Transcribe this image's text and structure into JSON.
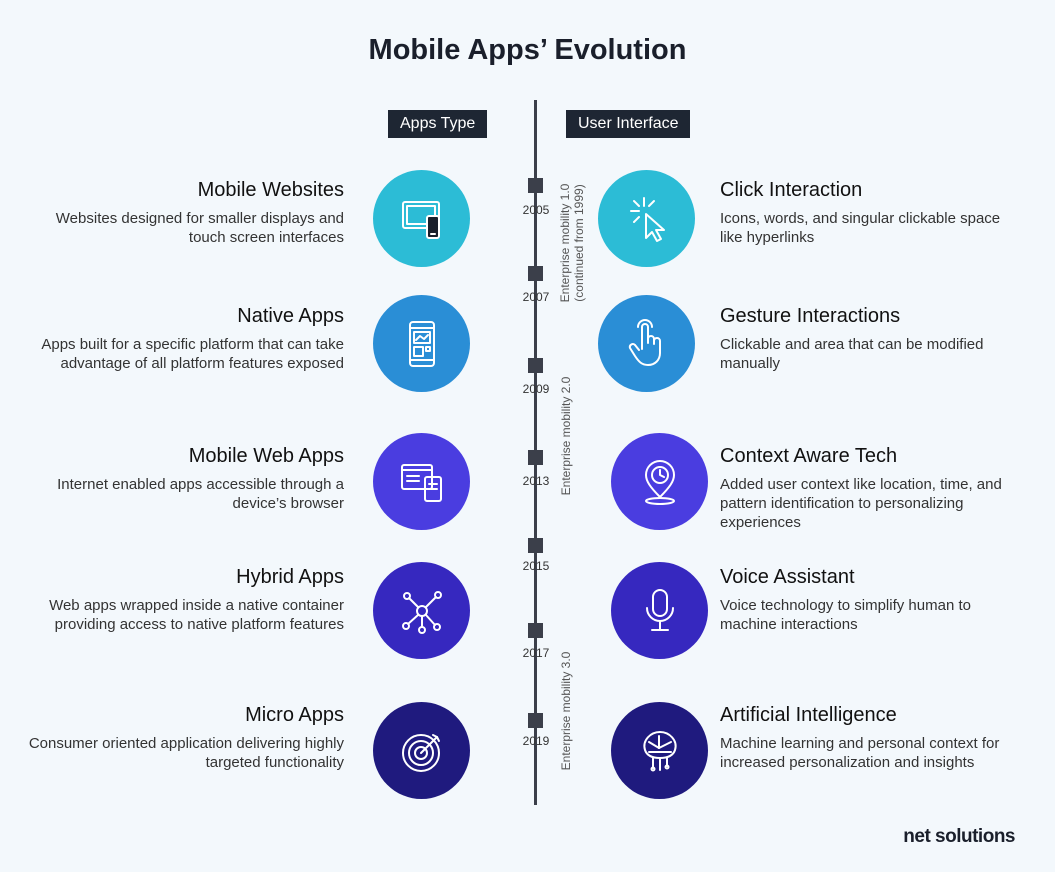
{
  "title": "Mobile Apps’ Evolution",
  "headers": {
    "left": "Apps Type",
    "right": "User Interface"
  },
  "years": [
    "2005",
    "2007",
    "2009",
    "2013",
    "2015",
    "2017",
    "2019"
  ],
  "eras": [
    {
      "line1": "Enterprise mobility 1.0",
      "line2": "(continued from 1999)"
    },
    {
      "line1": "Enterprise mobility 2.0"
    },
    {
      "line1": "Enterprise mobility 3.0"
    }
  ],
  "app_types": [
    {
      "title": "Mobile Websites",
      "desc": "Websites designed for smaller displays and touch screen interfaces",
      "icon": "devices-icon",
      "color": "#2cbcd6"
    },
    {
      "title": "Native Apps",
      "desc": "Apps built for a specific platform that can take advantage of all platform features exposed",
      "icon": "smartphone-app-icon",
      "color": "#2a8ed6"
    },
    {
      "title": "Mobile Web Apps",
      "desc": "Internet enabled apps accessible through a device’s browser",
      "icon": "web-app-icon",
      "color": "#4a3de0"
    },
    {
      "title": "Hybrid Apps",
      "desc": "Web apps wrapped inside a native container providing access to native platform features",
      "icon": "network-icon",
      "color": "#3628bf"
    },
    {
      "title": "Micro Apps",
      "desc": "Consumer oriented application delivering highly targeted functionality",
      "icon": "target-icon",
      "color": "#1f1a7e"
    }
  ],
  "interfaces": [
    {
      "title": "Click Interaction",
      "desc": "Icons, words, and singular clickable space like hyperlinks",
      "icon": "cursor-click-icon",
      "color": "#2cbcd6"
    },
    {
      "title": "Gesture Interactions",
      "desc": "Clickable and area that can be modified manually",
      "icon": "hand-pointer-icon",
      "color": "#2a8ed6"
    },
    {
      "title": "Context Aware Tech",
      "desc": "Added user context like location, time, and pattern identification to personalizing experiences",
      "icon": "location-time-icon",
      "color": "#4a3de0"
    },
    {
      "title": "Voice Assistant",
      "desc": "Voice technology to simplify human to machine interactions",
      "icon": "microphone-icon",
      "color": "#3628bf"
    },
    {
      "title": "Artificial Intelligence",
      "desc": "Machine learning and personal context for increased personalization and insights",
      "icon": "ai-brain-icon",
      "color": "#1f1a7e"
    }
  ],
  "logo": "net solutions"
}
